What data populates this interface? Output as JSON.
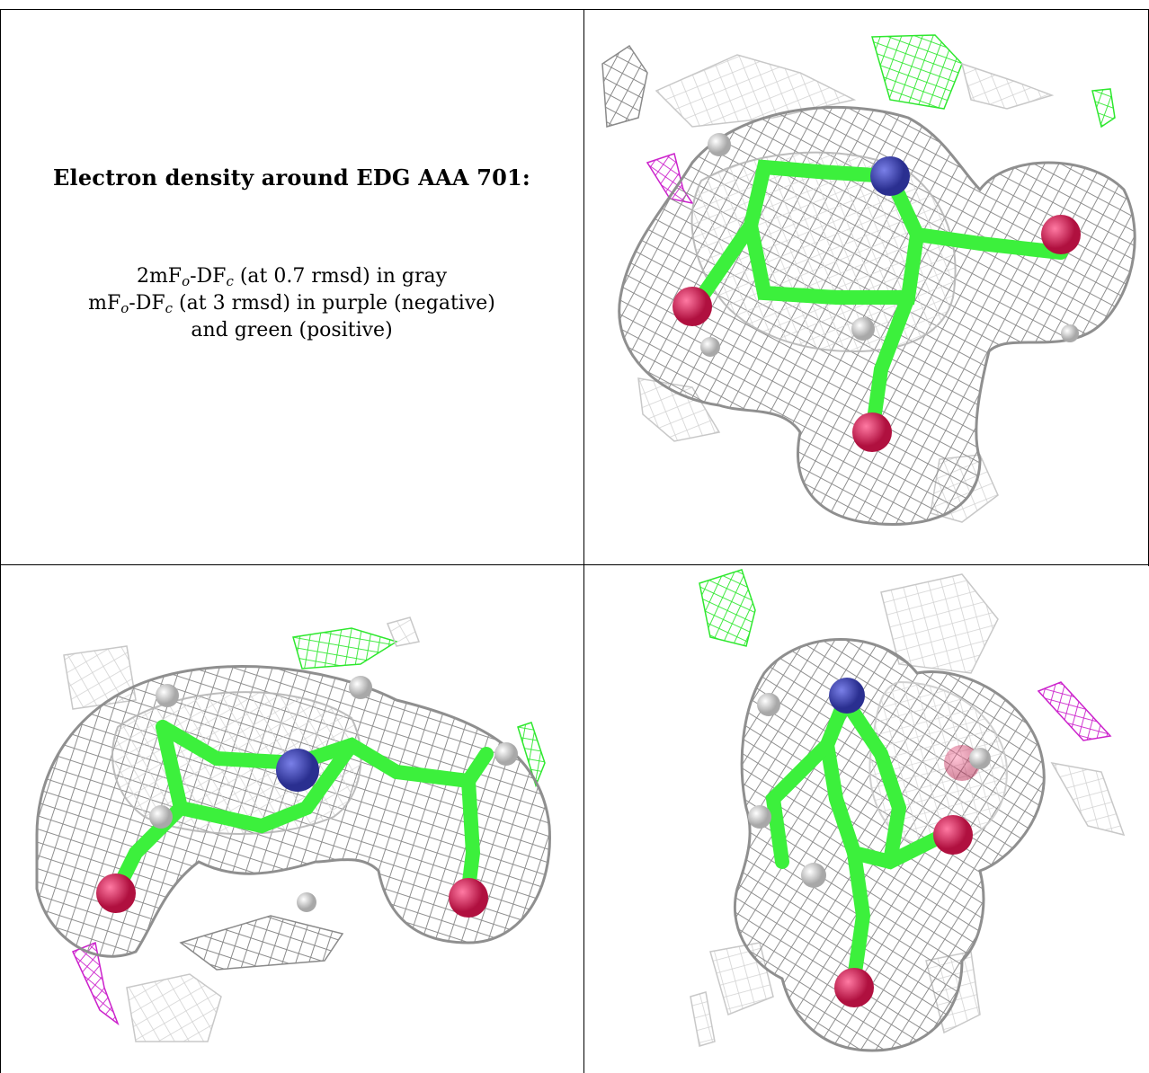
{
  "caption": {
    "title": "Electron density around EDG AAA 701:",
    "line1": {
      "a": "2mF",
      "b": "o",
      "c": "-DF",
      "d": "c",
      "e": " (at 0.7 rmsd) in gray"
    },
    "line2": {
      "a": "mF",
      "b": "o",
      "c": "-DF",
      "d": "c",
      "e": " (at 3 rmsd) in purple (negative)"
    },
    "line3": "and green (positive)"
  },
  "colors": {
    "mesh_gray": "#8a8a8a",
    "mesh_light": "#c8c8c8",
    "mesh_green": "#2ee82e",
    "mesh_purple": "#cc22cc",
    "carbon": "#3cf03c",
    "nitrogen": "#3a3fb0",
    "oxygen": "#d81e5b",
    "hydrogen": "#e8e8e8"
  },
  "panels": [
    {
      "name": "view-top-right",
      "icon": "electron-density-map"
    },
    {
      "name": "view-bottom-left",
      "icon": "electron-density-map"
    },
    {
      "name": "view-bottom-right",
      "icon": "electron-density-map"
    }
  ]
}
